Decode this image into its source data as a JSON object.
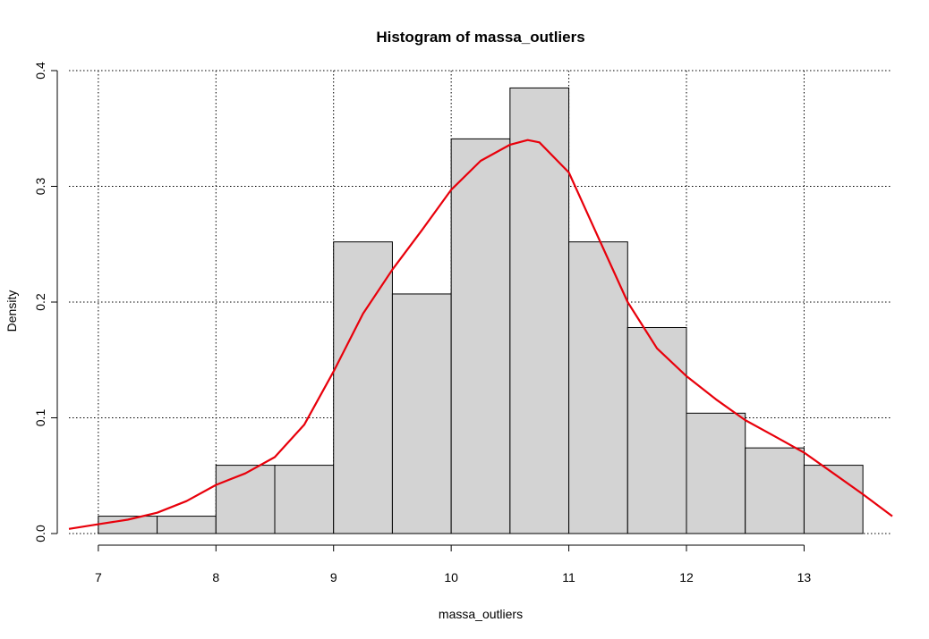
{
  "chart_data": {
    "type": "histogram",
    "title": "Histogram of massa_outliers",
    "xlabel": "massa_outliers",
    "ylabel": "Density",
    "xlim": [
      6.75,
      13.75
    ],
    "ylim": [
      0,
      0.4
    ],
    "x_ticks": [
      7,
      8,
      9,
      10,
      11,
      12,
      13
    ],
    "y_ticks": [
      0.0,
      0.1,
      0.2,
      0.3,
      0.4
    ],
    "y_tick_labels": [
      "0.0",
      "0.1",
      "0.2",
      "0.3",
      "0.4"
    ],
    "grid": true,
    "bins": [
      {
        "start": 7.0,
        "end": 7.5,
        "density": 0.015
      },
      {
        "start": 7.5,
        "end": 8.0,
        "density": 0.015
      },
      {
        "start": 8.0,
        "end": 8.5,
        "density": 0.059
      },
      {
        "start": 8.5,
        "end": 9.0,
        "density": 0.059
      },
      {
        "start": 9.0,
        "end": 9.5,
        "density": 0.252
      },
      {
        "start": 9.5,
        "end": 10.0,
        "density": 0.207
      },
      {
        "start": 10.0,
        "end": 10.5,
        "density": 0.341
      },
      {
        "start": 10.5,
        "end": 11.0,
        "density": 0.385
      },
      {
        "start": 11.0,
        "end": 11.5,
        "density": 0.252
      },
      {
        "start": 11.5,
        "end": 12.0,
        "density": 0.178
      },
      {
        "start": 12.0,
        "end": 12.5,
        "density": 0.104
      },
      {
        "start": 12.5,
        "end": 13.0,
        "density": 0.074
      },
      {
        "start": 13.0,
        "end": 13.5,
        "density": 0.059
      }
    ],
    "density_curve": {
      "x": [
        6.75,
        7.0,
        7.25,
        7.5,
        7.75,
        8.0,
        8.25,
        8.5,
        8.75,
        9.0,
        9.25,
        9.5,
        9.75,
        10.0,
        10.25,
        10.5,
        10.65,
        10.75,
        11.0,
        11.25,
        11.5,
        11.75,
        12.0,
        12.25,
        12.5,
        12.75,
        13.0,
        13.25,
        13.5,
        13.75
      ],
      "y": [
        0.004,
        0.008,
        0.012,
        0.018,
        0.028,
        0.042,
        0.052,
        0.066,
        0.094,
        0.14,
        0.19,
        0.228,
        0.262,
        0.297,
        0.322,
        0.336,
        0.34,
        0.338,
        0.312,
        0.256,
        0.2,
        0.16,
        0.136,
        0.116,
        0.098,
        0.084,
        0.07,
        0.052,
        0.034,
        0.015
      ]
    }
  },
  "colors": {
    "bar_fill": "#d3d3d3",
    "density_line": "#e8000b"
  }
}
